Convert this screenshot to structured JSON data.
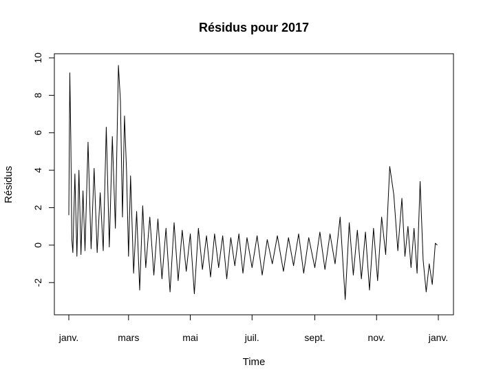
{
  "chart_data": {
    "type": "line",
    "title": "Résidus pour 2017",
    "xlabel": "Time",
    "ylabel": "Résidus",
    "xlim": [
      "2017-01-01",
      "2018-01-01"
    ],
    "ylim": [
      -3.5,
      10
    ],
    "x_ticks": [
      {
        "date": "2017-01-01",
        "label": "janv."
      },
      {
        "date": "2017-03-01",
        "label": "mars"
      },
      {
        "date": "2017-05-01",
        "label": "mai"
      },
      {
        "date": "2017-07-01",
        "label": "juil."
      },
      {
        "date": "2017-09-01",
        "label": "sept."
      },
      {
        "date": "2017-11-01",
        "label": "nov."
      },
      {
        "date": "2018-01-01",
        "label": "janv."
      }
    ],
    "y_ticks": [
      {
        "value": -2,
        "label": "-2"
      },
      {
        "value": 0,
        "label": "0"
      },
      {
        "value": 2,
        "label": "2"
      },
      {
        "value": 4,
        "label": "4"
      },
      {
        "value": 6,
        "label": "6"
      },
      {
        "value": 8,
        "label": "8"
      },
      {
        "value": 10,
        "label": "10"
      }
    ],
    "grid": false,
    "line_color": "#000000",
    "series": [
      {
        "x": [
          "2017-01-01",
          "2017-01-02",
          "2017-01-03",
          "2017-01-04",
          "2017-01-05",
          "2017-01-07",
          "2017-01-09",
          "2017-01-11",
          "2017-01-13",
          "2017-01-15",
          "2017-01-17",
          "2017-01-20",
          "2017-01-23",
          "2017-01-26",
          "2017-01-29",
          "2017-02-01",
          "2017-02-04",
          "2017-02-07",
          "2017-02-10",
          "2017-02-13",
          "2017-02-16",
          "2017-02-19",
          "2017-02-21",
          "2017-02-23",
          "2017-02-25",
          "2017-02-27",
          "2017-03-01",
          "2017-03-03",
          "2017-03-06",
          "2017-03-09",
          "2017-03-12",
          "2017-03-15",
          "2017-03-18",
          "2017-03-22",
          "2017-03-26",
          "2017-03-30",
          "2017-04-03",
          "2017-04-07",
          "2017-04-11",
          "2017-04-15",
          "2017-04-19",
          "2017-04-23",
          "2017-04-27",
          "2017-05-01",
          "2017-05-05",
          "2017-05-09",
          "2017-05-13",
          "2017-05-17",
          "2017-05-21",
          "2017-05-25",
          "2017-05-29",
          "2017-06-02",
          "2017-06-06",
          "2017-06-10",
          "2017-06-14",
          "2017-06-18",
          "2017-06-22",
          "2017-06-26",
          "2017-07-01",
          "2017-07-06",
          "2017-07-11",
          "2017-07-16",
          "2017-07-21",
          "2017-07-26",
          "2017-08-01",
          "2017-08-06",
          "2017-08-11",
          "2017-08-16",
          "2017-08-21",
          "2017-08-26",
          "2017-09-01",
          "2017-09-06",
          "2017-09-11",
          "2017-09-16",
          "2017-09-21",
          "2017-09-26",
          "2017-10-01",
          "2017-10-05",
          "2017-10-09",
          "2017-10-13",
          "2017-10-17",
          "2017-10-21",
          "2017-10-25",
          "2017-10-29",
          "2017-11-02",
          "2017-11-06",
          "2017-11-10",
          "2017-11-14",
          "2017-11-18",
          "2017-11-22",
          "2017-11-26",
          "2017-11-29",
          "2017-12-02",
          "2017-12-05",
          "2017-12-08",
          "2017-12-11",
          "2017-12-14",
          "2017-12-17",
          "2017-12-20",
          "2017-12-23",
          "2017-12-26",
          "2017-12-29",
          "2017-12-31"
        ],
        "y": [
          1.6,
          9.2,
          5.6,
          0.3,
          -0.4,
          3.8,
          -0.6,
          4.0,
          -0.5,
          2.9,
          -0.3,
          5.5,
          -0.2,
          4.1,
          -0.4,
          2.8,
          -0.3,
          6.3,
          -0.1,
          5.8,
          0.9,
          9.6,
          7.7,
          1.5,
          6.9,
          4.0,
          -0.6,
          3.7,
          -1.5,
          1.8,
          -2.4,
          2.1,
          -1.2,
          1.5,
          -1.6,
          1.4,
          -1.8,
          0.9,
          -2.5,
          1.2,
          -1.9,
          0.8,
          -1.4,
          0.6,
          -2.6,
          0.9,
          -1.3,
          0.5,
          -1.7,
          0.6,
          -1.2,
          0.5,
          -1.8,
          0.4,
          -1.1,
          0.6,
          -1.5,
          0.4,
          -1.2,
          0.5,
          -1.6,
          0.3,
          -1.0,
          0.5,
          -1.4,
          0.4,
          -1.1,
          0.6,
          -1.5,
          0.4,
          -1.2,
          0.7,
          -1.3,
          0.6,
          -1.0,
          1.5,
          -2.9,
          1.2,
          -1.6,
          0.8,
          -1.8,
          0.7,
          -2.4,
          0.9,
          -1.9,
          1.5,
          -0.5,
          4.2,
          2.7,
          -0.3,
          2.5,
          -0.6,
          1.0,
          -1.2,
          0.9,
          -1.5,
          3.4,
          -0.8,
          -2.5,
          -1.0,
          -2.1,
          0.1,
          0.0
        ]
      }
    ]
  }
}
